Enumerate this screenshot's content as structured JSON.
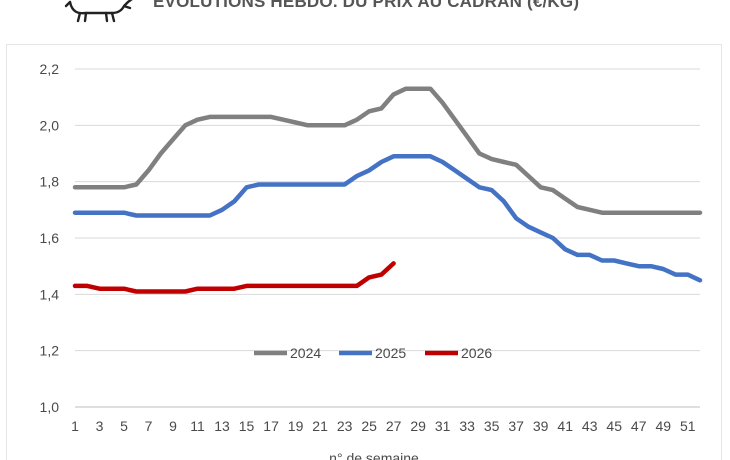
{
  "header": {
    "title": "ÉVOLUTIONS HEBDO. DU PRIX AU CADRAN (€/KG)",
    "logo_icon": "cow-icon"
  },
  "chart_data": {
    "type": "line",
    "title": "ÉVOLUTIONS HEBDO. DU PRIX AU CADRAN (€/KG)",
    "xlabel": "n° de semaine",
    "ylabel": "",
    "ylim": [
      1.0,
      2.2
    ],
    "xlim": [
      1,
      52
    ],
    "yticks": [
      "1,0",
      "1,2",
      "1,4",
      "1,6",
      "1,8",
      "2,0",
      "2,2"
    ],
    "yticks_values": [
      1.0,
      1.2,
      1.4,
      1.6,
      1.8,
      2.0,
      2.2
    ],
    "xticks": [
      "1",
      "3",
      "5",
      "7",
      "9",
      "11",
      "13",
      "15",
      "17",
      "19",
      "21",
      "23",
      "25",
      "27",
      "29",
      "31",
      "33",
      "35",
      "37",
      "39",
      "41",
      "43",
      "45",
      "47",
      "49",
      "51"
    ],
    "grid": "horizontal",
    "legend_position": "center",
    "series": [
      {
        "name": "2024",
        "color": "#808080",
        "x": [
          1,
          2,
          3,
          4,
          5,
          6,
          7,
          8,
          9,
          10,
          11,
          12,
          13,
          14,
          15,
          16,
          17,
          18,
          19,
          20,
          21,
          22,
          23,
          24,
          25,
          26,
          27,
          28,
          29,
          30,
          31,
          32,
          33,
          34,
          35,
          36,
          37,
          38,
          39,
          40,
          41,
          42,
          43,
          44,
          45,
          46,
          47,
          48,
          49,
          50,
          51,
          52
        ],
        "values": [
          1.78,
          1.78,
          1.78,
          1.78,
          1.78,
          1.79,
          1.84,
          1.9,
          1.95,
          2.0,
          2.02,
          2.03,
          2.03,
          2.03,
          2.03,
          2.03,
          2.03,
          2.02,
          2.01,
          2.0,
          2.0,
          2.0,
          2.0,
          2.02,
          2.05,
          2.06,
          2.11,
          2.13,
          2.13,
          2.13,
          2.08,
          2.02,
          1.96,
          1.9,
          1.88,
          1.87,
          1.86,
          1.82,
          1.78,
          1.77,
          1.74,
          1.71,
          1.7,
          1.69,
          1.69,
          1.69,
          1.69,
          1.69,
          1.69,
          1.69,
          1.69,
          1.69
        ]
      },
      {
        "name": "2025",
        "color": "#4472C4",
        "x": [
          1,
          2,
          3,
          4,
          5,
          6,
          7,
          8,
          9,
          10,
          11,
          12,
          13,
          14,
          15,
          16,
          17,
          18,
          19,
          20,
          21,
          22,
          23,
          24,
          25,
          26,
          27,
          28,
          29,
          30,
          31,
          32,
          33,
          34,
          35,
          36,
          37,
          38,
          39,
          40,
          41,
          42,
          43,
          44,
          45,
          46,
          47,
          48,
          49,
          50,
          51,
          52
        ],
        "values": [
          1.69,
          1.69,
          1.69,
          1.69,
          1.69,
          1.68,
          1.68,
          1.68,
          1.68,
          1.68,
          1.68,
          1.68,
          1.7,
          1.73,
          1.78,
          1.79,
          1.79,
          1.79,
          1.79,
          1.79,
          1.79,
          1.79,
          1.79,
          1.82,
          1.84,
          1.87,
          1.89,
          1.89,
          1.89,
          1.89,
          1.87,
          1.84,
          1.81,
          1.78,
          1.77,
          1.73,
          1.67,
          1.64,
          1.62,
          1.6,
          1.56,
          1.54,
          1.54,
          1.52,
          1.52,
          1.51,
          1.5,
          1.5,
          1.49,
          1.47,
          1.47,
          1.45
        ]
      },
      {
        "name": "2026",
        "color": "#C00000",
        "x": [
          1,
          2,
          3,
          4,
          5,
          6,
          7,
          8,
          9,
          10,
          11,
          12,
          13,
          14,
          15,
          16,
          17,
          18,
          19,
          20,
          21,
          22,
          23,
          24,
          25,
          26,
          27
        ],
        "values": [
          1.43,
          1.43,
          1.42,
          1.42,
          1.42,
          1.41,
          1.41,
          1.41,
          1.41,
          1.41,
          1.42,
          1.42,
          1.42,
          1.42,
          1.43,
          1.43,
          1.43,
          1.43,
          1.43,
          1.43,
          1.43,
          1.43,
          1.43,
          1.43,
          1.46,
          1.47,
          1.51
        ]
      }
    ]
  }
}
